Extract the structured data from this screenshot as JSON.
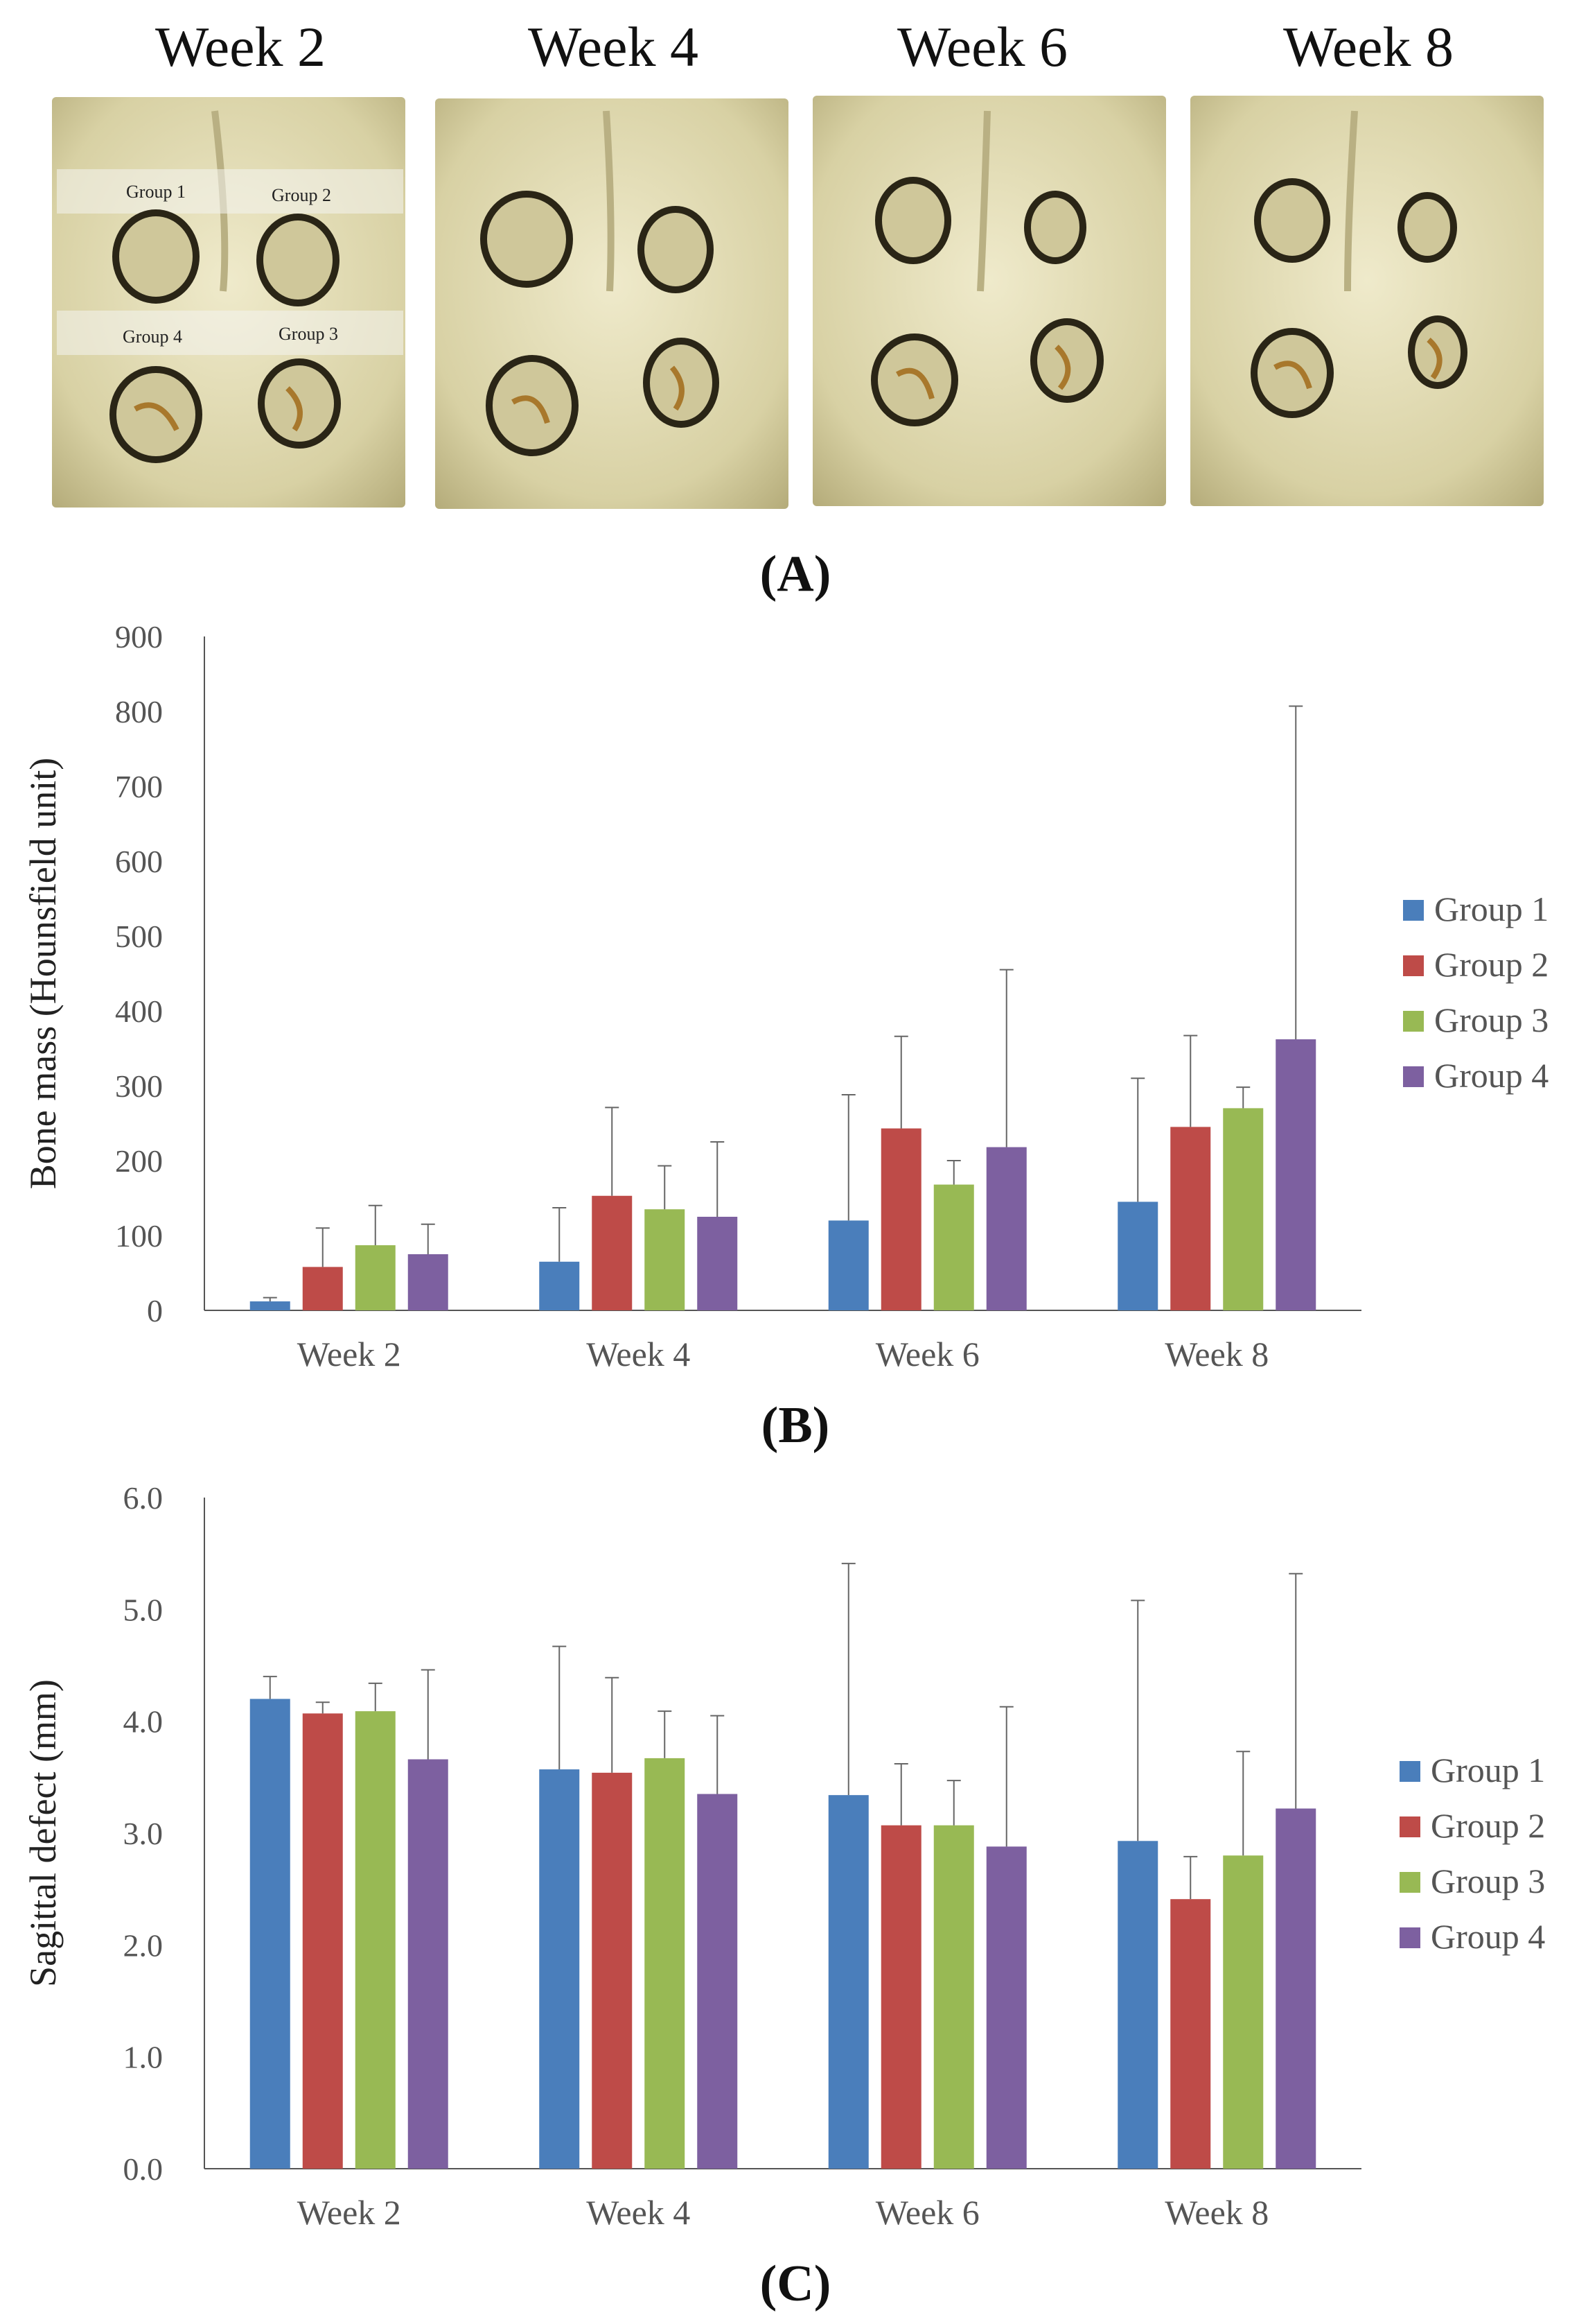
{
  "panel_a": {
    "weeks": [
      "Week 2",
      "Week 4",
      "Week 6",
      "Week 8"
    ],
    "group_labels": [
      "Group 1",
      "Group 2",
      "Group 4",
      "Group 3"
    ],
    "caption": "(A)"
  },
  "colors": {
    "group1": "#4a7ebb",
    "group2": "#be4b48",
    "group3": "#98b954",
    "group4": "#7d60a0",
    "bone": "#d9d3a8",
    "bone_light": "#ece7c6",
    "bone_dark": "#a89f6e",
    "ring": "#2a2516",
    "gold": "#a8782c"
  },
  "chart_data": [
    {
      "type": "bar",
      "caption": "(B)",
      "title": "",
      "xlabel": "",
      "ylabel": "Bone mass (Hounsfield unit)",
      "categories": [
        "Week 2",
        "Week 4",
        "Week 6",
        "Week 8"
      ],
      "ylim": [
        0,
        900
      ],
      "yticks": [
        0,
        100,
        200,
        300,
        400,
        500,
        600,
        700,
        800,
        900
      ],
      "ytick_labels": [
        "0",
        "100",
        "200",
        "300",
        "400",
        "500",
        "600",
        "700",
        "800",
        "900"
      ],
      "legend_position": "right",
      "grid": false,
      "series": [
        {
          "name": "Group 1",
          "values": [
            12,
            65,
            120,
            145
          ],
          "errors": [
            5,
            72,
            168,
            165
          ]
        },
        {
          "name": "Group 2",
          "values": [
            58,
            153,
            243,
            245
          ],
          "errors": [
            52,
            118,
            123,
            122
          ]
        },
        {
          "name": "Group 3",
          "values": [
            87,
            135,
            168,
            270
          ],
          "errors": [
            53,
            58,
            32,
            28
          ]
        },
        {
          "name": "Group 4",
          "values": [
            75,
            125,
            218,
            362
          ],
          "errors": [
            40,
            100,
            237,
            445
          ]
        }
      ]
    },
    {
      "type": "bar",
      "caption": "(C)",
      "title": "",
      "xlabel": "",
      "ylabel": "Sagittal defect (mm)",
      "categories": [
        "Week 2",
        "Week 4",
        "Week 6",
        "Week 8"
      ],
      "ylim": [
        0,
        6
      ],
      "yticks": [
        0,
        1,
        2,
        3,
        4,
        5,
        6
      ],
      "ytick_labels": [
        "0.0",
        "1.0",
        "2.0",
        "3.0",
        "4.0",
        "5.0",
        "6.0"
      ],
      "legend_position": "right",
      "grid": false,
      "series": [
        {
          "name": "Group 1",
          "values": [
            4.2,
            3.57,
            3.34,
            2.93
          ],
          "errors": [
            0.2,
            1.1,
            2.07,
            2.15
          ]
        },
        {
          "name": "Group 2",
          "values": [
            4.07,
            3.54,
            3.07,
            2.41
          ],
          "errors": [
            0.1,
            0.85,
            0.55,
            0.38
          ]
        },
        {
          "name": "Group 3",
          "values": [
            4.09,
            3.67,
            3.07,
            2.8
          ],
          "errors": [
            0.25,
            0.42,
            0.4,
            0.93
          ]
        },
        {
          "name": "Group 4",
          "values": [
            3.66,
            3.35,
            2.88,
            3.22
          ],
          "errors": [
            0.8,
            0.7,
            1.25,
            2.1
          ]
        }
      ]
    }
  ]
}
